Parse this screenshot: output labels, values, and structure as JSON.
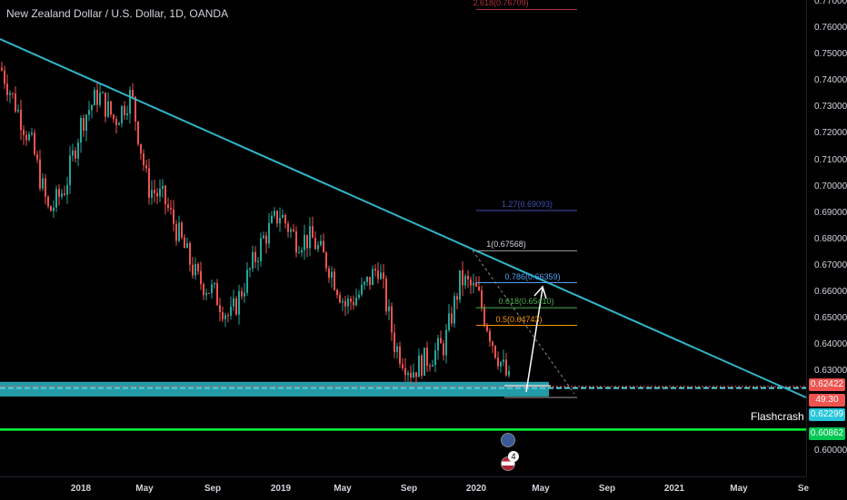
{
  "header": {
    "symbol": "New Zealand Dollar / U.S. Dollar, 1D, OANDA"
  },
  "price_axis": {
    "ticks": [
      "0.77000",
      "0.76000",
      "0.75000",
      "0.74000",
      "0.73000",
      "0.72000",
      "0.71000",
      "0.70000",
      "0.69000",
      "0.68000",
      "0.67000",
      "0.66000",
      "0.65000",
      "0.64000",
      "0.63000",
      "0.60000"
    ]
  },
  "price_badges": {
    "current": "0.62422",
    "countdown": "49:30",
    "level_cyan": "0.62299",
    "level_green": "0.60862"
  },
  "time_axis": {
    "ticks": [
      "2018",
      "May",
      "Sep",
      "2019",
      "May",
      "Sep",
      "2020",
      "May",
      "Sep",
      "2021",
      "May",
      "Se"
    ]
  },
  "fib_levels": [
    {
      "label": "2.618(0.76709)",
      "color": "#b2323b"
    },
    {
      "label": "1.27(0.69093)",
      "color": "#3f51b5"
    },
    {
      "label": "1(0.67568)",
      "color": "#9e9e9e"
    },
    {
      "label": "0.786(0.66359)",
      "color": "#4fa3f7"
    },
    {
      "label": "0.618(0.65410)",
      "color": "#4caf50"
    },
    {
      "label": "0.5(0.64743)",
      "color": "#ff9800"
    }
  ],
  "annotations": {
    "flashcrash": "Flashcrash",
    "event_count": "4"
  },
  "colors": {
    "background": "#000000",
    "trendline": "#2fb5c8",
    "support_zone": "#29b6c6",
    "support_line": "#00ff33",
    "candle_up": "#26a69a",
    "candle_down": "#ef5350",
    "current_price": "#ef5350"
  },
  "chart_data": {
    "type": "candlestick",
    "title": "New Zealand Dollar / U.S. Dollar, 1D, OANDA",
    "x_range": [
      "2017-09",
      "2021-09"
    ],
    "ylim": [
      0.595,
      0.775
    ],
    "approx_close_path": [
      {
        "x": "2017-09",
        "y": 0.745
      },
      {
        "x": "2017-10",
        "y": 0.715
      },
      {
        "x": "2017-11",
        "y": 0.69
      },
      {
        "x": "2017-12",
        "y": 0.7
      },
      {
        "x": "2018-01",
        "y": 0.725
      },
      {
        "x": "2018-02",
        "y": 0.735
      },
      {
        "x": "2018-03",
        "y": 0.725
      },
      {
        "x": "2018-04",
        "y": 0.735
      },
      {
        "x": "2018-05",
        "y": 0.7
      },
      {
        "x": "2018-06",
        "y": 0.695
      },
      {
        "x": "2018-07",
        "y": 0.68
      },
      {
        "x": "2018-08",
        "y": 0.665
      },
      {
        "x": "2018-09",
        "y": 0.66
      },
      {
        "x": "2018-10",
        "y": 0.65
      },
      {
        "x": "2018-11",
        "y": 0.665
      },
      {
        "x": "2018-12",
        "y": 0.68
      },
      {
        "x": "2019-01",
        "y": 0.69
      },
      {
        "x": "2019-02",
        "y": 0.68
      },
      {
        "x": "2019-03",
        "y": 0.68
      },
      {
        "x": "2019-04",
        "y": 0.67
      },
      {
        "x": "2019-05",
        "y": 0.655
      },
      {
        "x": "2019-06",
        "y": 0.66
      },
      {
        "x": "2019-07",
        "y": 0.67
      },
      {
        "x": "2019-08",
        "y": 0.64
      },
      {
        "x": "2019-09",
        "y": 0.63
      },
      {
        "x": "2019-10",
        "y": 0.635
      },
      {
        "x": "2019-11",
        "y": 0.64
      },
      {
        "x": "2019-12",
        "y": 0.665
      },
      {
        "x": "2020-01",
        "y": 0.66
      },
      {
        "x": "2020-02",
        "y": 0.64
      },
      {
        "x": "2020-03",
        "y": 0.625
      }
    ],
    "trendline": [
      {
        "x": "2017-08",
        "y": 0.76
      },
      {
        "x": "2021-09",
        "y": 0.622
      }
    ],
    "support_zone": [
      0.6215,
      0.625
    ],
    "horizontal_lines": [
      0.62299,
      0.60862
    ],
    "current_price": 0.62422
  }
}
